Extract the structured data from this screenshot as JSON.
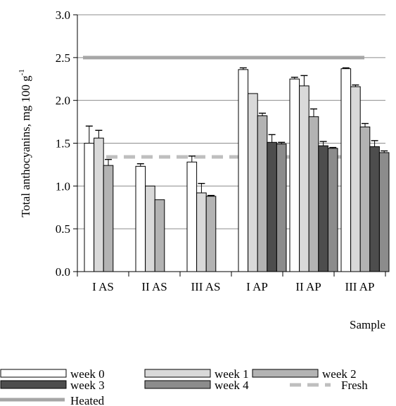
{
  "chart_data": {
    "type": "bar",
    "title": "",
    "xlabel": "Sample",
    "ylabel": {
      "main": "Total anthocyanins,  mg 100  g",
      "superscript": "-1"
    },
    "ylim": [
      0,
      3.0
    ],
    "ytick_step": 0.5,
    "ytick_labels": [
      "0.0",
      "0.5",
      "1.0",
      "1.5",
      "2.0",
      "2.5",
      "3.0"
    ],
    "grid": true,
    "legend_position": "bottom",
    "categories": [
      "I AS",
      "II AS",
      "III AS",
      "I AP",
      "II AP",
      "III AP"
    ],
    "series": [
      {
        "name": "week 0",
        "color": "#ffffff",
        "values": [
          1.5,
          1.23,
          1.28,
          2.36,
          2.25,
          2.37
        ],
        "errors": [
          0.2,
          0.03,
          0.07,
          0.02,
          0.02,
          0.01
        ]
      },
      {
        "name": "week 1",
        "color": "#d9d9d9",
        "values": [
          1.56,
          1.0,
          0.92,
          2.08,
          2.17,
          2.16
        ],
        "errors": [
          0.09,
          0.0,
          0.11,
          0.0,
          0.12,
          0.02
        ]
      },
      {
        "name": "week 2",
        "color": "#b3b3b3",
        "values": [
          1.24,
          0.84,
          0.88,
          1.82,
          1.81,
          1.69
        ],
        "errors": [
          0.07,
          0.0,
          0.01,
          0.03,
          0.09,
          0.04
        ]
      },
      {
        "name": "week 3",
        "color": "#4d4d4d",
        "values": [
          null,
          null,
          null,
          1.51,
          1.47,
          1.46
        ],
        "errors": [
          0,
          0,
          0,
          0.09,
          0.05,
          0.07
        ]
      },
      {
        "name": "week 4",
        "color": "#8c8c8c",
        "values": [
          null,
          null,
          null,
          1.49,
          1.44,
          1.39
        ],
        "errors": [
          0,
          0,
          0,
          0.02,
          0.01,
          0.02
        ]
      }
    ],
    "reference_lines": [
      {
        "name": "Fresh",
        "value": 1.34,
        "color": "#bfbfbf",
        "style": "dashed"
      },
      {
        "name": "Heated",
        "value": 2.5,
        "color": "#a6a6a6",
        "style": "solid"
      }
    ]
  }
}
